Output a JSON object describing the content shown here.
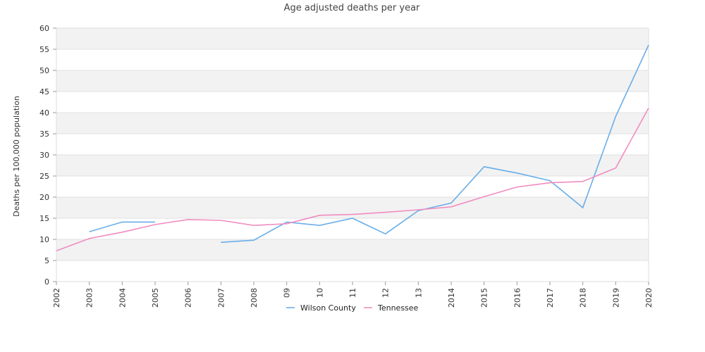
{
  "chart_data": {
    "type": "line",
    "title": "Age adjusted deaths per year",
    "xlabel": "",
    "ylabel": "Deaths per 100,000 population",
    "categories": [
      "2002",
      "2003",
      "2004",
      "2005",
      "2006",
      "2007",
      "2008",
      "09",
      "10",
      "11",
      "12",
      "13",
      "2014",
      "2015",
      "2016",
      "2017",
      "2018",
      "2019",
      "2020"
    ],
    "ylim": [
      0,
      60
    ],
    "yticks": [
      0,
      5,
      10,
      15,
      20,
      25,
      30,
      35,
      40,
      45,
      50,
      55,
      60
    ],
    "grid": "alternating horizontal bands",
    "legend_position": "bottom-center",
    "series": [
      {
        "name": "Wilson County",
        "color": "#6aaee8",
        "values": [
          null,
          11.8,
          14.1,
          14.1,
          null,
          9.3,
          9.8,
          14.1,
          13.3,
          15.0,
          11.3,
          16.8,
          18.6,
          27.2,
          25.7,
          23.9,
          17.5,
          39.1,
          56.0
        ]
      },
      {
        "name": "Tennessee",
        "color": "#f08cc0",
        "values": [
          7.3,
          10.2,
          11.7,
          13.5,
          14.7,
          14.5,
          13.3,
          13.7,
          15.7,
          15.9,
          16.4,
          17.0,
          17.7,
          20.1,
          22.4,
          23.4,
          23.7,
          26.9,
          41.1
        ]
      }
    ]
  }
}
